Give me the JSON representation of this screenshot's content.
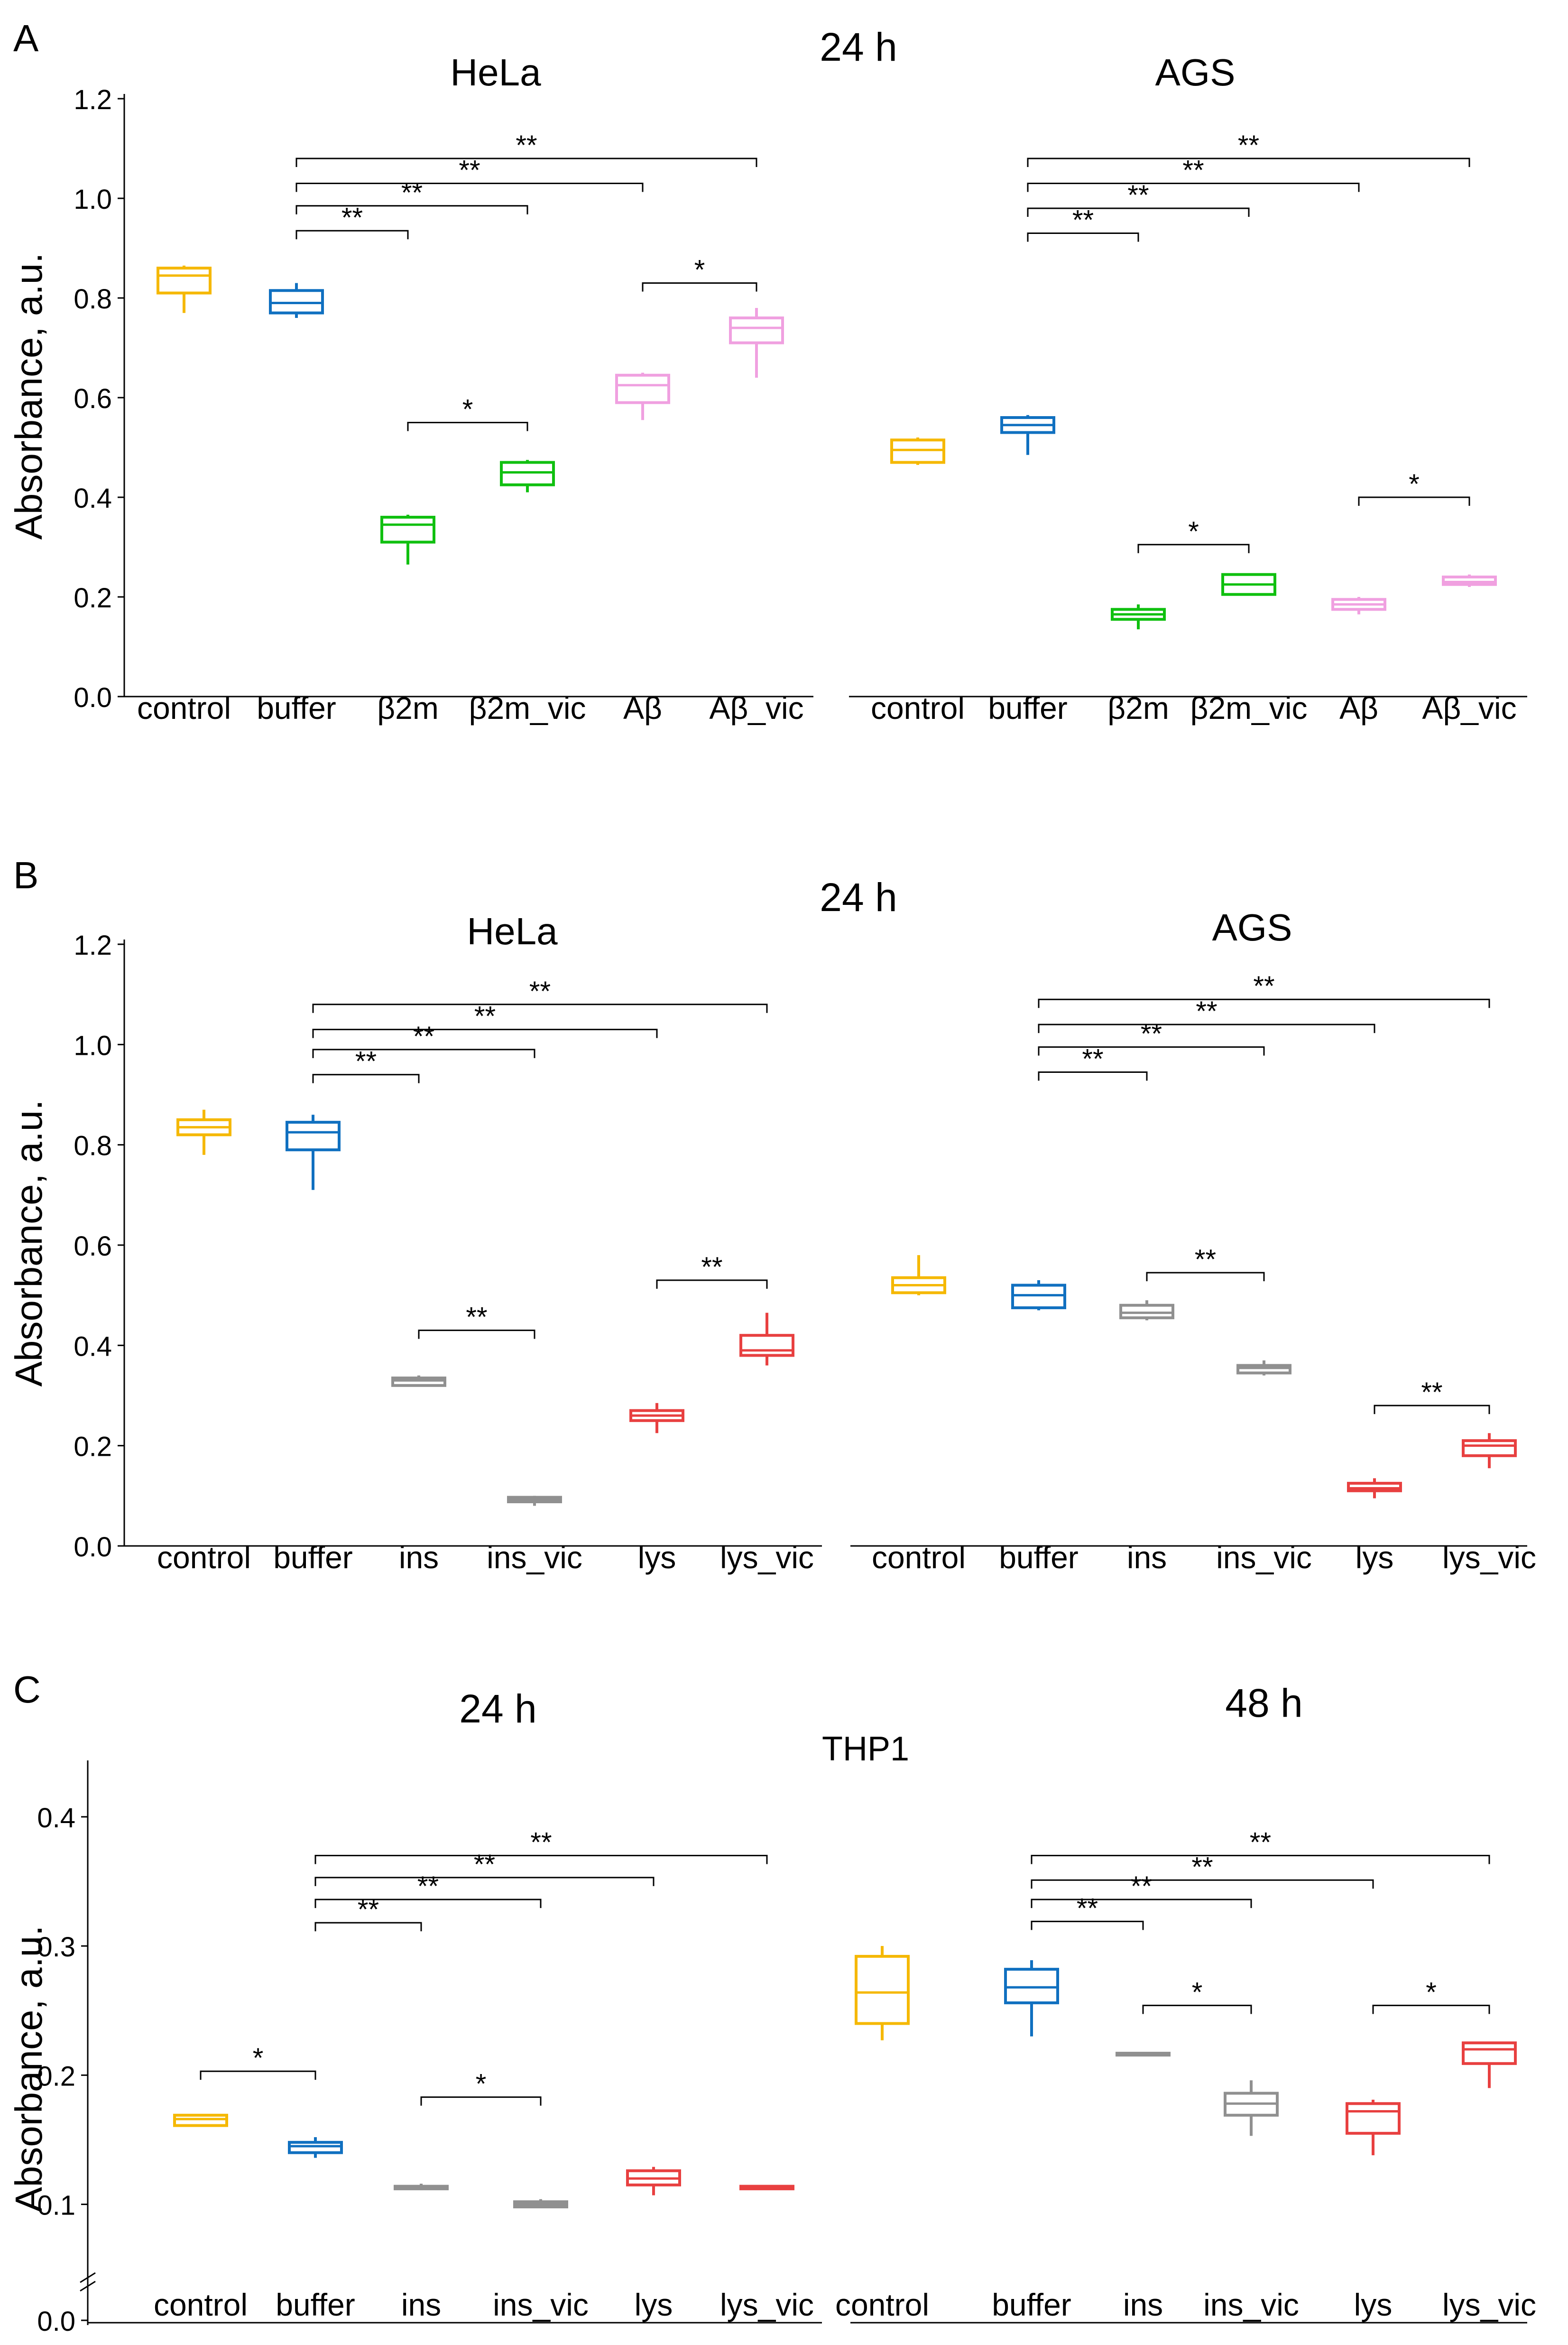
{
  "figure": {
    "panel_labels": [
      "A",
      "B",
      "C"
    ]
  },
  "chart_data": [
    {
      "type": "boxplot",
      "panel": "A",
      "title": "24 h",
      "ylabel": "Absorbance, a.u.",
      "ylim": [
        0,
        1.2
      ],
      "yticks": [
        "0.0",
        "0.2",
        "0.4",
        "0.6",
        "0.8",
        "1.0",
        "1.2"
      ],
      "subplots": [
        {
          "title": "HeLa",
          "categories": [
            "control",
            "buffer",
            "β2m",
            "β2m_vic",
            "Aβ",
            "Aβ_vic"
          ],
          "colors": [
            "#F5B800",
            "#1070C0",
            "#10C010",
            "#10C010",
            "#F0A0E0",
            "#F0A0E0"
          ],
          "boxes": [
            {
              "min": 0.77,
              "q1": 0.81,
              "median": 0.845,
              "q3": 0.86,
              "max": 0.865
            },
            {
              "min": 0.76,
              "q1": 0.77,
              "median": 0.79,
              "q3": 0.815,
              "max": 0.83
            },
            {
              "min": 0.265,
              "q1": 0.31,
              "median": 0.345,
              "q3": 0.36,
              "max": 0.365
            },
            {
              "min": 0.41,
              "q1": 0.425,
              "median": 0.45,
              "q3": 0.47,
              "max": 0.475
            },
            {
              "min": 0.555,
              "q1": 0.59,
              "median": 0.625,
              "q3": 0.645,
              "max": 0.65
            },
            {
              "min": 0.64,
              "q1": 0.71,
              "median": 0.74,
              "q3": 0.76,
              "max": 0.78
            }
          ],
          "significance": [
            {
              "from": 1,
              "to": 2,
              "y": 0.935,
              "label": "**"
            },
            {
              "from": 1,
              "to": 3,
              "y": 0.985,
              "label": "**"
            },
            {
              "from": 1,
              "to": 4,
              "y": 1.03,
              "label": "**"
            },
            {
              "from": 1,
              "to": 5,
              "y": 1.08,
              "label": "**"
            },
            {
              "from": 2,
              "to": 3,
              "y": 0.55,
              "label": "*"
            },
            {
              "from": 4,
              "to": 5,
              "y": 0.83,
              "label": "*"
            }
          ]
        },
        {
          "title": "AGS",
          "categories": [
            "control",
            "buffer",
            "β2m",
            "β2m_vic",
            "Aβ",
            "Aβ_vic"
          ],
          "colors": [
            "#F5B800",
            "#1070C0",
            "#10C010",
            "#10C010",
            "#F0A0E0",
            "#F0A0E0"
          ],
          "boxes": [
            {
              "min": 0.465,
              "q1": 0.47,
              "median": 0.495,
              "q3": 0.515,
              "max": 0.52
            },
            {
              "min": 0.485,
              "q1": 0.53,
              "median": 0.545,
              "q3": 0.56,
              "max": 0.565
            },
            {
              "min": 0.135,
              "q1": 0.155,
              "median": 0.165,
              "q3": 0.175,
              "max": 0.185
            },
            {
              "min": 0.205,
              "q1": 0.205,
              "median": 0.225,
              "q3": 0.245,
              "max": 0.245
            },
            {
              "min": 0.165,
              "q1": 0.175,
              "median": 0.185,
              "q3": 0.195,
              "max": 0.2
            },
            {
              "min": 0.22,
              "q1": 0.225,
              "median": 0.23,
              "q3": 0.24,
              "max": 0.245
            }
          ],
          "significance": [
            {
              "from": 1,
              "to": 2,
              "y": 0.93,
              "label": "**"
            },
            {
              "from": 1,
              "to": 3,
              "y": 0.98,
              "label": "**"
            },
            {
              "from": 1,
              "to": 4,
              "y": 1.03,
              "label": "**"
            },
            {
              "from": 1,
              "to": 5,
              "y": 1.08,
              "label": "**"
            },
            {
              "from": 2,
              "to": 3,
              "y": 0.305,
              "label": "*"
            },
            {
              "from": 4,
              "to": 5,
              "y": 0.4,
              "label": "*"
            }
          ]
        }
      ]
    },
    {
      "type": "boxplot",
      "panel": "B",
      "title": "24 h",
      "ylabel": "Absorbance, a.u.",
      "ylim": [
        0,
        1.2
      ],
      "yticks": [
        "0.0",
        "0.2",
        "0.4",
        "0.6",
        "0.8",
        "1.0",
        "1.2"
      ],
      "subplots": [
        {
          "title": "HeLa",
          "categories": [
            "control",
            "buffer",
            "ins",
            "ins_vic",
            "lys",
            "lys_vic"
          ],
          "colors": [
            "#F5B800",
            "#1070C0",
            "#909090",
            "#909090",
            "#E84040",
            "#E84040"
          ],
          "boxes": [
            {
              "min": 0.78,
              "q1": 0.82,
              "median": 0.835,
              "q3": 0.85,
              "max": 0.87
            },
            {
              "min": 0.71,
              "q1": 0.79,
              "median": 0.825,
              "q3": 0.845,
              "max": 0.86
            },
            {
              "min": 0.32,
              "q1": 0.32,
              "median": 0.33,
              "q3": 0.335,
              "max": 0.34
            },
            {
              "min": 0.08,
              "q1": 0.088,
              "median": 0.093,
              "q3": 0.097,
              "max": 0.1
            },
            {
              "min": 0.225,
              "q1": 0.25,
              "median": 0.26,
              "q3": 0.27,
              "max": 0.285
            },
            {
              "min": 0.36,
              "q1": 0.38,
              "median": 0.39,
              "q3": 0.42,
              "max": 0.465
            }
          ],
          "significance": [
            {
              "from": 1,
              "to": 2,
              "y": 0.94,
              "label": "**"
            },
            {
              "from": 1,
              "to": 3,
              "y": 0.99,
              "label": "**"
            },
            {
              "from": 1,
              "to": 4,
              "y": 1.03,
              "label": "**"
            },
            {
              "from": 1,
              "to": 5,
              "y": 1.08,
              "label": "**"
            },
            {
              "from": 2,
              "to": 3,
              "y": 0.43,
              "label": "**"
            },
            {
              "from": 4,
              "to": 5,
              "y": 0.53,
              "label": "**"
            }
          ]
        },
        {
          "title": "AGS",
          "categories": [
            "control",
            "buffer",
            "ins",
            "ins_vic",
            "lys",
            "lys_vic"
          ],
          "colors": [
            "#F5B800",
            "#1070C0",
            "#909090",
            "#909090",
            "#E84040",
            "#E84040"
          ],
          "boxes": [
            {
              "min": 0.5,
              "q1": 0.505,
              "median": 0.52,
              "q3": 0.535,
              "max": 0.58
            },
            {
              "min": 0.47,
              "q1": 0.475,
              "median": 0.5,
              "q3": 0.52,
              "max": 0.53
            },
            {
              "min": 0.45,
              "q1": 0.455,
              "median": 0.465,
              "q3": 0.48,
              "max": 0.49
            },
            {
              "min": 0.34,
              "q1": 0.345,
              "median": 0.355,
              "q3": 0.36,
              "max": 0.37
            },
            {
              "min": 0.095,
              "q1": 0.11,
              "median": 0.115,
              "q3": 0.125,
              "max": 0.135
            },
            {
              "min": 0.155,
              "q1": 0.18,
              "median": 0.2,
              "q3": 0.21,
              "max": 0.225
            }
          ],
          "significance": [
            {
              "from": 1,
              "to": 2,
              "y": 0.945,
              "label": "**"
            },
            {
              "from": 1,
              "to": 3,
              "y": 0.995,
              "label": "**"
            },
            {
              "from": 1,
              "to": 4,
              "y": 1.04,
              "label": "**"
            },
            {
              "from": 1,
              "to": 5,
              "y": 1.09,
              "label": "**"
            },
            {
              "from": 2,
              "to": 3,
              "y": 0.545,
              "label": "**"
            },
            {
              "from": 4,
              "to": 5,
              "y": 0.28,
              "label": "**"
            }
          ]
        }
      ]
    },
    {
      "type": "boxplot",
      "panel": "C",
      "title": "THP1",
      "ylabel": "Absorbance, a.u.",
      "ylim": [
        0.0,
        0.46
      ],
      "yaxis_break": true,
      "yticks": [
        "0.0",
        "0.1",
        "0.2",
        "0.3",
        "0.4"
      ],
      "subplots": [
        {
          "title": "24 h",
          "categories": [
            "control",
            "buffer",
            "ins",
            "ins_vic",
            "lys",
            "lys_vic"
          ],
          "colors": [
            "#F5B800",
            "#1070C0",
            "#909090",
            "#909090",
            "#E84040",
            "#E84040"
          ],
          "boxes": [
            {
              "min": 0.16,
              "q1": 0.161,
              "median": 0.166,
              "q3": 0.169,
              "max": 0.17
            },
            {
              "min": 0.136,
              "q1": 0.14,
              "median": 0.145,
              "q3": 0.148,
              "max": 0.152
            },
            {
              "min": 0.111,
              "q1": 0.112,
              "median": 0.113,
              "q3": 0.114,
              "max": 0.116
            },
            {
              "min": 0.097,
              "q1": 0.098,
              "median": 0.1,
              "q3": 0.102,
              "max": 0.104
            },
            {
              "min": 0.107,
              "q1": 0.115,
              "median": 0.12,
              "q3": 0.126,
              "max": 0.129
            },
            {
              "min": 0.112,
              "q1": 0.112,
              "median": 0.113,
              "q3": 0.114,
              "max": 0.115
            }
          ],
          "significance": [
            {
              "from": 0,
              "to": 1,
              "y": 0.203,
              "label": "*"
            },
            {
              "from": 1,
              "to": 2,
              "y": 0.318,
              "label": "**"
            },
            {
              "from": 1,
              "to": 3,
              "y": 0.336,
              "label": "**"
            },
            {
              "from": 1,
              "to": 4,
              "y": 0.353,
              "label": "**"
            },
            {
              "from": 1,
              "to": 5,
              "y": 0.37,
              "label": "**"
            },
            {
              "from": 2,
              "to": 3,
              "y": 0.183,
              "label": "*"
            }
          ]
        },
        {
          "title": "48 h",
          "categories": [
            "control",
            "buffer",
            "ins",
            "ins_vic",
            "lys",
            "lys_vic"
          ],
          "colors": [
            "#F5B800",
            "#1070C0",
            "#909090",
            "#909090",
            "#E84040",
            "#E84040"
          ],
          "boxes": [
            {
              "min": 0.227,
              "q1": 0.24,
              "median": 0.264,
              "q3": 0.292,
              "max": 0.3
            },
            {
              "min": 0.23,
              "q1": 0.256,
              "median": 0.268,
              "q3": 0.282,
              "max": 0.289
            },
            {
              "min": 0.215,
              "q1": 0.216,
              "median": 0.216,
              "q3": 0.217,
              "max": 0.218
            },
            {
              "min": 0.153,
              "q1": 0.169,
              "median": 0.178,
              "q3": 0.186,
              "max": 0.196
            },
            {
              "min": 0.138,
              "q1": 0.155,
              "median": 0.172,
              "q3": 0.178,
              "max": 0.181
            },
            {
              "min": 0.19,
              "q1": 0.209,
              "median": 0.22,
              "q3": 0.225,
              "max": 0.226
            }
          ],
          "significance": [
            {
              "from": 1,
              "to": 2,
              "y": 0.319,
              "label": "**"
            },
            {
              "from": 1,
              "to": 3,
              "y": 0.336,
              "label": "**"
            },
            {
              "from": 1,
              "to": 4,
              "y": 0.351,
              "label": "**"
            },
            {
              "from": 1,
              "to": 5,
              "y": 0.37,
              "label": "**"
            },
            {
              "from": 2,
              "to": 3,
              "y": 0.254,
              "label": "*"
            },
            {
              "from": 4,
              "to": 5,
              "y": 0.254,
              "label": "*"
            }
          ]
        }
      ]
    }
  ]
}
